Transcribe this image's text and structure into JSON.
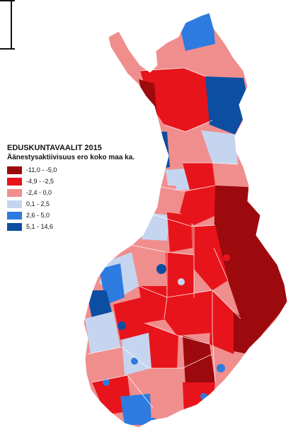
{
  "legend": {
    "title": "EDUSKUNTAVAALIT 2015",
    "subtitle": "Äänestysaktiivisuus ero koko maa ka.",
    "classes": [
      {
        "label": "-11,0 - -5,0",
        "color": "#9c0a0e"
      },
      {
        "label": "-4,9 - -2,5",
        "color": "#e8141b"
      },
      {
        "label": "-2,4 - 0,0",
        "color": "#f08e8e"
      },
      {
        "label": "0,1 - 2,5",
        "color": "#c5d5f0"
      },
      {
        "label": "2,6 - 5,0",
        "color": "#2e7be0"
      },
      {
        "label": "5,1 - 14,6",
        "color": "#0b4ea2"
      }
    ]
  },
  "map": {
    "region": "Finland",
    "border_color": "#ffffff"
  }
}
